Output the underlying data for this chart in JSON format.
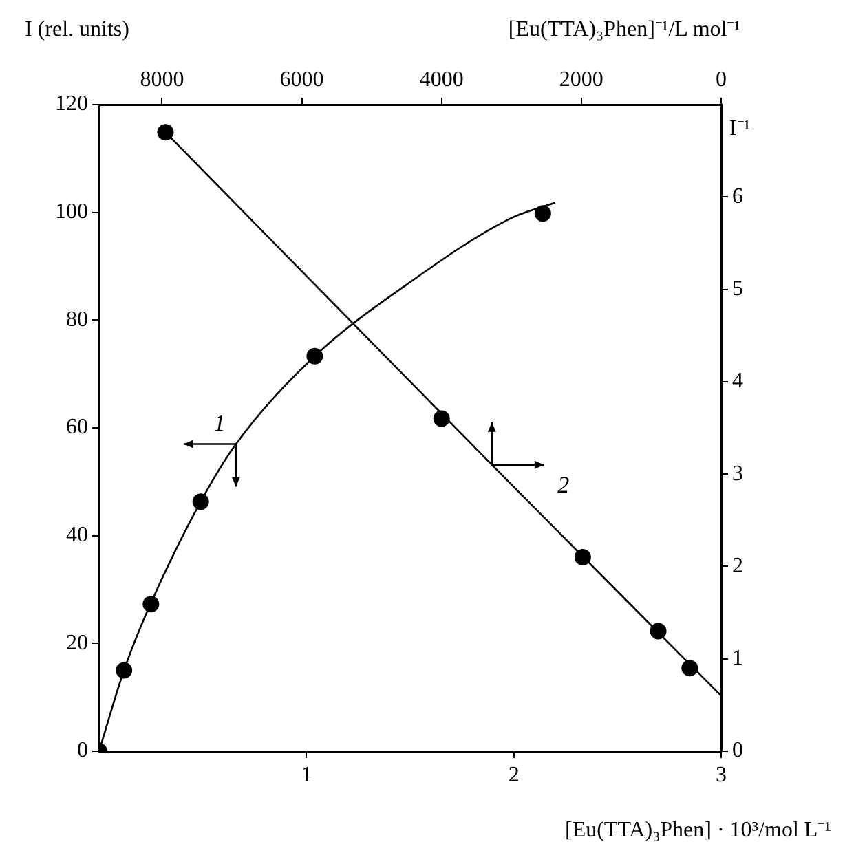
{
  "chart_data": [
    {
      "type": "line",
      "xlabel": "[Eu(TTA)₃Phen] · 10³/mol L⁻¹",
      "ylabel": "I (rel. units)",
      "xlim": [
        0,
        3
      ],
      "xticks": [
        1,
        2,
        3
      ],
      "ylim": [
        0,
        120
      ],
      "yticks": [
        0,
        20,
        40,
        60,
        80,
        100,
        120
      ],
      "grid": false,
      "series": [
        {
          "name": "1",
          "marker": "none",
          "color": "#000000",
          "x": [
            0,
            0.12,
            0.25,
            0.49,
            0.66,
            1.04,
            1.48,
            1.98,
            2.2
          ],
          "values": [
            0,
            15,
            27.5,
            46.3,
            57,
            73.3,
            86.5,
            98.8,
            101.8
          ]
        },
        {
          "type": "scatter",
          "marker": "circle",
          "color": "#000000",
          "x": [
            0,
            0.12,
            0.25,
            0.49,
            1.04,
            2.14
          ],
          "values": [
            0,
            15,
            27.3,
            46.3,
            73.3,
            99.8
          ]
        }
      ]
    },
    {
      "type": "line",
      "xlabel": "[Eu(TTA)₃Phen]⁻¹/L mol⁻¹",
      "ylabel": "I⁻¹",
      "xlim": [
        8900,
        0
      ],
      "xticks": [
        8000,
        6000,
        4000,
        2000,
        0
      ],
      "ylim": [
        0,
        7
      ],
      "yticks": [
        0,
        1,
        2,
        3,
        4,
        5,
        6
      ],
      "grid": false,
      "series": [
        {
          "name": "2",
          "marker": "none",
          "color": "#000000",
          "x": [
            7950,
            3280,
            0
          ],
          "values": [
            6.7,
            3.1,
            0.6
          ]
        },
        {
          "type": "scatter",
          "marker": "circle",
          "color": "#000000",
          "x": [
            7950,
            4000,
            1980,
            900,
            450
          ],
          "values": [
            6.7,
            3.6,
            2.1,
            1.3,
            0.9
          ]
        }
      ]
    }
  ]
}
